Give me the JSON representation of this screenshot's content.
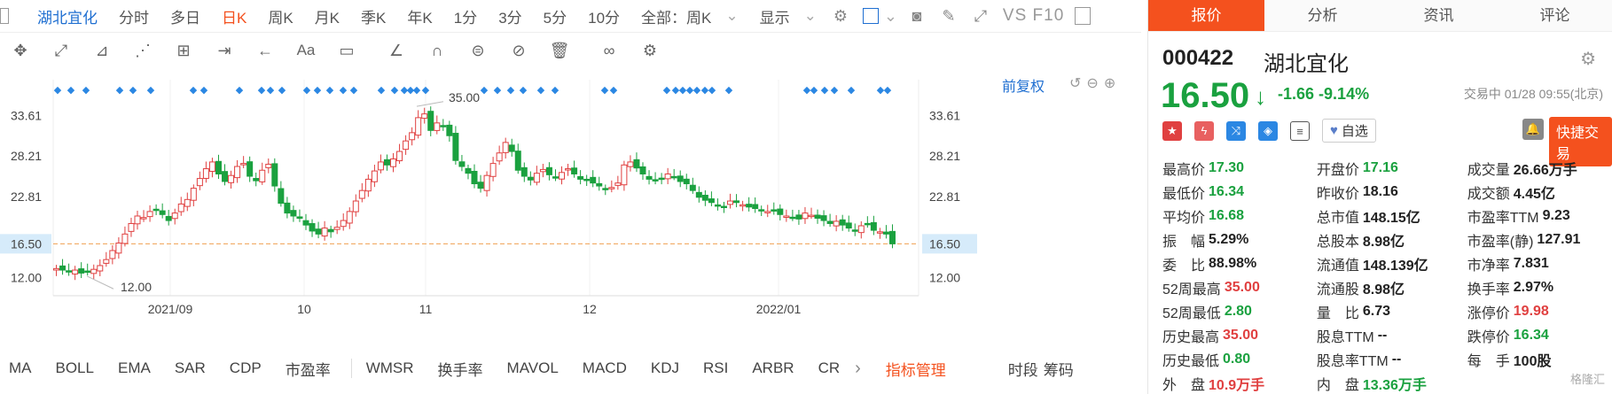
{
  "toolbar": {
    "stock_name": "湖北宜化",
    "periods": [
      "分时",
      "多日",
      "日K",
      "周K",
      "月K",
      "季K",
      "年K",
      "1分",
      "3分",
      "5分",
      "10分"
    ],
    "active_period": "日K",
    "fuquan_select": "全部：周K",
    "display_label": "显示",
    "vs_label": "VS F10"
  },
  "drawing_tools": [
    "move",
    "line",
    "channel",
    "wave",
    "fib",
    "range",
    "arrow",
    "text",
    "comment",
    "ruler",
    "magnet",
    "lock",
    "hide",
    "delete",
    "visibility",
    "settings"
  ],
  "chart": {
    "fuquan": "前复权",
    "price_labels": [
      "33.61",
      "28.21",
      "22.81",
      "16.50",
      "12.00"
    ],
    "current_label": "16.50",
    "x_labels": [
      "2021/09",
      "10",
      "11",
      "12",
      "2022/01"
    ],
    "high_annot": "35.00",
    "low_annot": "12.00"
  },
  "chart_data": {
    "type": "candlestick",
    "ylim": [
      10,
      36
    ],
    "current_price": 16.5,
    "y_ticks": [
      33.61,
      28.21,
      22.81,
      16.5,
      12.0
    ],
    "x_ticks": [
      "2021/09",
      "10",
      "11",
      "12",
      "2022/01"
    ],
    "max_price": 35.0,
    "min_price": 12.0,
    "closes": [
      13.2,
      13.0,
      12.8,
      13.0,
      12.6,
      12.8,
      13.1,
      13.6,
      14.4,
      15.6,
      16.6,
      17.8,
      19.2,
      20.2,
      20.0,
      20.8,
      21.1,
      20.4,
      19.6,
      20.6,
      21.8,
      22.4,
      23.9,
      25.2,
      26.5,
      27.4,
      25.8,
      24.8,
      25.6,
      26.8,
      27.2,
      25.5,
      24.9,
      26.3,
      27.1,
      24.2,
      21.9,
      20.6,
      20.2,
      19.9,
      19.0,
      18.2,
      17.8,
      18.6,
      18.1,
      18.7,
      19.6,
      20.8,
      22.2,
      23.6,
      25.1,
      26.2,
      27.4,
      27.0,
      27.8,
      28.8,
      30.2,
      31.3,
      33.3,
      33.8,
      31.6,
      32.6,
      32.2,
      30.9,
      27.6,
      26.8,
      25.9,
      24.5,
      23.9,
      25.6,
      27.2,
      28.6,
      30.0,
      28.8,
      26.3,
      25.5,
      25.0,
      25.9,
      26.4,
      25.7,
      25.3,
      26.0,
      26.5,
      25.8,
      25.1,
      25.0,
      24.6,
      24.2,
      23.8,
      24.0,
      24.6,
      27.0,
      27.4,
      26.6,
      25.8,
      25.1,
      24.9,
      25.2,
      25.8,
      25.4,
      24.8,
      24.5,
      23.6,
      22.7,
      22.3,
      22.0,
      21.6,
      21.4,
      22.2,
      22.0,
      21.7,
      21.4,
      21.2,
      21.0,
      20.8,
      20.9,
      20.4,
      20.2,
      20.0,
      19.8,
      20.6,
      20.3,
      19.9,
      19.6,
      19.2,
      19.5,
      19.0,
      18.6,
      18.2,
      18.9,
      19.2,
      18.3,
      18.1,
      17.8,
      16.5
    ],
    "markers": "◆ marks above candles"
  },
  "indicators": [
    "MA",
    "BOLL",
    "EMA",
    "SAR",
    "CDP",
    "市盈率",
    "WMSR",
    "换手率",
    "MAVOL",
    "MACD",
    "KDJ",
    "RSI",
    "ARBR",
    "CR"
  ],
  "indicator_manage": "指标管理",
  "bottom_right": [
    "时段",
    "筹码"
  ],
  "panel": {
    "tabs": [
      "报价",
      "分析",
      "资讯",
      "评论"
    ],
    "active_tab": "报价",
    "code": "000422",
    "name": "湖北宜化",
    "price": "16.50",
    "change": "-1.66",
    "change_pct": "-9.14%",
    "status": "交易中 01/28 09:55(北京)",
    "fav_label": "自选",
    "trade_label": "快捷交易",
    "stats": [
      [
        {
          "l": "最高价",
          "v": "17.30",
          "c": "g"
        },
        {
          "l": "开盘价",
          "v": "17.16",
          "c": "g"
        },
        {
          "l": "成交量",
          "v": "26.66万手",
          "c": "k"
        }
      ],
      [
        {
          "l": "最低价",
          "v": "16.34",
          "c": "g"
        },
        {
          "l": "昨收价",
          "v": "18.16",
          "c": "k"
        },
        {
          "l": "成交额",
          "v": "4.45亿",
          "c": "k"
        }
      ],
      [
        {
          "l": "平均价",
          "v": "16.68",
          "c": "g"
        },
        {
          "l": "总市值",
          "v": "148.15亿",
          "c": "k"
        },
        {
          "l": "市盈率TTM",
          "v": "9.23",
          "c": "k"
        }
      ],
      [
        {
          "l": "振　幅",
          "v": "5.29%",
          "c": "k"
        },
        {
          "l": "总股本",
          "v": "8.98亿",
          "c": "k"
        },
        {
          "l": "市盈率(静)",
          "v": "127.91",
          "c": "k"
        }
      ],
      [
        {
          "l": "委　比",
          "v": "88.98%",
          "c": "k"
        },
        {
          "l": "流通值",
          "v": "148.139亿",
          "c": "k"
        },
        {
          "l": "市净率",
          "v": "7.831",
          "c": "k"
        }
      ],
      [
        {
          "l": "52周最高",
          "v": "35.00",
          "c": "r"
        },
        {
          "l": "流通股",
          "v": "8.98亿",
          "c": "k"
        },
        {
          "l": "换手率",
          "v": "2.97%",
          "c": "k"
        }
      ],
      [
        {
          "l": "52周最低",
          "v": "2.80",
          "c": "g"
        },
        {
          "l": "量　比",
          "v": "6.73",
          "c": "k"
        },
        {
          "l": "涨停价",
          "v": "19.98",
          "c": "r"
        }
      ],
      [
        {
          "l": "历史最高",
          "v": "35.00",
          "c": "r"
        },
        {
          "l": "股息TTM",
          "v": "--",
          "c": "k"
        },
        {
          "l": "跌停价",
          "v": "16.34",
          "c": "g"
        }
      ],
      [
        {
          "l": "历史最低",
          "v": "0.80",
          "c": "g"
        },
        {
          "l": "股息率TTM",
          "v": "--",
          "c": "k"
        },
        {
          "l": "每　手",
          "v": "100股",
          "c": "k"
        }
      ],
      [
        {
          "l": "外　盘",
          "v": "10.9万手",
          "c": "r"
        },
        {
          "l": "内　盘",
          "v": "13.36万手",
          "c": "g"
        },
        {
          "l": "",
          "v": "",
          "c": "k"
        }
      ]
    ],
    "watermark": "格隆汇"
  },
  "colors": {
    "up": "#e04040",
    "down": "#1aa13f",
    "accent": "#f4511e",
    "link": "#1f6fd1"
  }
}
